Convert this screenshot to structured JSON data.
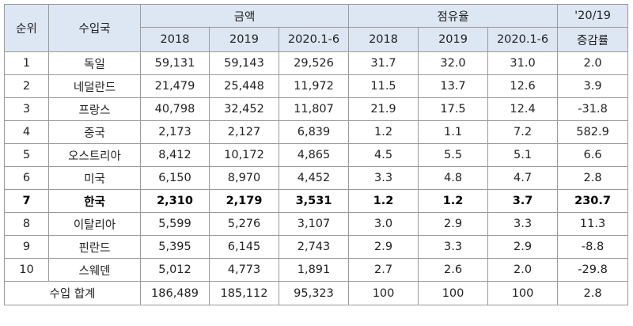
{
  "table": {
    "headers": {
      "rank": "순위",
      "country": "수입국",
      "amount": "금액",
      "share": "점유율",
      "growth_line1": "'20/19",
      "growth_line2": "증감률",
      "years": [
        "2018",
        "2019",
        "2020.1-6"
      ]
    },
    "rows": [
      {
        "rank": "1",
        "country": "독일",
        "a2018": "59,131",
        "a2019": "59,143",
        "a2020": "29,526",
        "s2018": "31.7",
        "s2019": "32.0",
        "s2020": "31.0",
        "growth": "2.0"
      },
      {
        "rank": "2",
        "country": "네덜란드",
        "a2018": "21,479",
        "a2019": "25,448",
        "a2020": "11,972",
        "s2018": "11.5",
        "s2019": "13.7",
        "s2020": "12.6",
        "growth": "3.9"
      },
      {
        "rank": "3",
        "country": "프랑스",
        "a2018": "40,798",
        "a2019": "32,452",
        "a2020": "11,807",
        "s2018": "21.9",
        "s2019": "17.5",
        "s2020": "12.4",
        "growth": "-31.8"
      },
      {
        "rank": "4",
        "country": "중국",
        "a2018": "2,173",
        "a2019": "2,127",
        "a2020": "6,839",
        "s2018": "1.2",
        "s2019": "1.1",
        "s2020": "7.2",
        "growth": "582.9"
      },
      {
        "rank": "5",
        "country": "오스트리아",
        "a2018": "8,412",
        "a2019": "10,172",
        "a2020": "4,865",
        "s2018": "4.5",
        "s2019": "5.5",
        "s2020": "5.1",
        "growth": "6.6"
      },
      {
        "rank": "6",
        "country": "미국",
        "a2018": "6,150",
        "a2019": "8,970",
        "a2020": "4,452",
        "s2018": "3.3",
        "s2019": "4.8",
        "s2020": "4.7",
        "growth": "2.8"
      },
      {
        "rank": "7",
        "country": "한국",
        "a2018": "2,310",
        "a2019": "2,179",
        "a2020": "3,531",
        "s2018": "1.2",
        "s2019": "1.2",
        "s2020": "3.7",
        "growth": "230.7"
      },
      {
        "rank": "8",
        "country": "이탈리아",
        "a2018": "5,599",
        "a2019": "5,276",
        "a2020": "3,107",
        "s2018": "3.0",
        "s2019": "2.9",
        "s2020": "3.3",
        "growth": "11.3"
      },
      {
        "rank": "9",
        "country": "핀란드",
        "a2018": "5,395",
        "a2019": "6,145",
        "a2020": "2,743",
        "s2018": "2.9",
        "s2019": "3.3",
        "s2020": "2.9",
        "growth": "-8.8"
      },
      {
        "rank": "10",
        "country": "스웨덴",
        "a2018": "5,012",
        "a2019": "4,773",
        "a2020": "1,891",
        "s2018": "2.7",
        "s2019": "2.6",
        "s2020": "2.0",
        "growth": "-29.8"
      }
    ],
    "total": {
      "label": "수입 합계",
      "a2018": "186,489",
      "a2019": "185,112",
      "a2020": "95,323",
      "s2018": "100",
      "s2019": "100",
      "s2020": "100",
      "growth": "2.8"
    },
    "highlight_rank": "7",
    "header_bg": "#dde6f3",
    "border_color": "#9a9a9a"
  }
}
